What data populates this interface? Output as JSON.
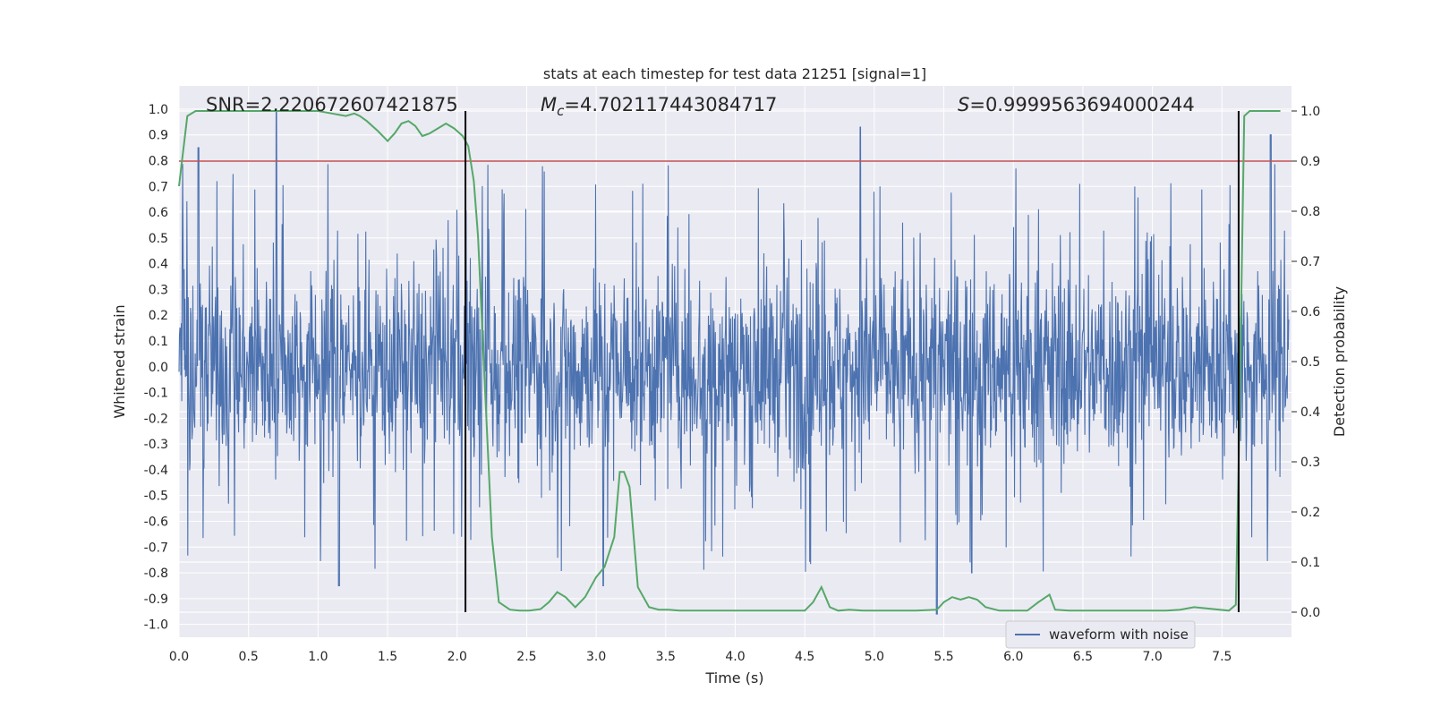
{
  "chart_data": {
    "type": "line",
    "title": "stats at each timestep for test data 21251 [signal=1]",
    "xlabel": "Time (s)",
    "ylabel": "Whitened strain",
    "ylabel_right": "Detection probability",
    "xlim": [
      0.0,
      8.0
    ],
    "ylim": [
      -1.05,
      1.09
    ],
    "ylim_right": [
      -0.05,
      1.0
    ],
    "x_ticks": [
      "0.0",
      "0.5",
      "1.0",
      "1.5",
      "2.0",
      "2.5",
      "3.0",
      "3.5",
      "4.0",
      "4.5",
      "5.0",
      "5.5",
      "6.0",
      "6.5",
      "7.0",
      "7.5"
    ],
    "x_tick_values": [
      0.0,
      0.5,
      1.0,
      1.5,
      2.0,
      2.5,
      3.0,
      3.5,
      4.0,
      4.5,
      5.0,
      5.5,
      6.0,
      6.5,
      7.0,
      7.5
    ],
    "y_ticks": [
      "1.0",
      "0.9",
      "0.8",
      "0.7",
      "0.6",
      "0.5",
      "0.4",
      "0.3",
      "0.2",
      "0.1",
      "0.0",
      "-0.1",
      "-0.2",
      "-0.3",
      "-0.4",
      "-0.5",
      "-0.6",
      "-0.7",
      "-0.8",
      "-0.9",
      "-1.0"
    ],
    "y_tick_values": [
      1.0,
      0.9,
      0.8,
      0.7,
      0.6,
      0.5,
      0.4,
      0.3,
      0.2,
      0.1,
      0.0,
      -0.1,
      -0.2,
      -0.3,
      -0.4,
      -0.5,
      -0.6,
      -0.7,
      -0.8,
      -0.9,
      -1.0
    ],
    "y_right_ticks": [
      "1.0",
      "0.9",
      "0.8",
      "0.7",
      "0.6",
      "0.5",
      "0.4",
      "0.3",
      "0.2",
      "0.1",
      "0.0"
    ],
    "y_right_tick_values": [
      1.0,
      0.9,
      0.8,
      0.7,
      0.6,
      0.5,
      0.4,
      0.3,
      0.2,
      0.1,
      0.0
    ],
    "annotations": {
      "snr": "SNR=2.220672607421875",
      "mc_symbol": "M",
      "mc_sub": "c",
      "mc_value": "=4.702117443084717",
      "s_symbol": "S",
      "s_value": "=0.9999563694000244"
    },
    "legend": {
      "label": "waveform with noise",
      "position": "lower-right"
    },
    "threshold_right": 0.9,
    "event_lines_x": [
      2.06,
      7.62
    ],
    "waveform": {
      "name": "waveform with noise",
      "color": "#4c72b0",
      "note_visible_envelope": "dense noise mostly within ±0.45, peaks to about ±1.0",
      "x_range": [
        0.0,
        8.0
      ]
    },
    "series": [
      {
        "name": "",
        "color": "#55a868",
        "axis": "right",
        "x": [
          0.0,
          0.06,
          0.12,
          0.2,
          0.3,
          0.4,
          0.5,
          0.6,
          0.7,
          0.8,
          0.9,
          1.0,
          1.1,
          1.2,
          1.26,
          1.3,
          1.35,
          1.43,
          1.5,
          1.55,
          1.6,
          1.65,
          1.7,
          1.75,
          1.8,
          1.86,
          1.92,
          1.98,
          2.04,
          2.08,
          2.12,
          2.15,
          2.2,
          2.25,
          2.3,
          2.38,
          2.45,
          2.52,
          2.6,
          2.66,
          2.72,
          2.78,
          2.85,
          2.92,
          3.0,
          3.06,
          3.13,
          3.17,
          3.2,
          3.24,
          3.3,
          3.38,
          3.45,
          3.52,
          3.6,
          3.7,
          3.8,
          4.0,
          4.2,
          4.4,
          4.5,
          4.56,
          4.62,
          4.68,
          4.74,
          4.82,
          4.92,
          5.0,
          5.1,
          5.2,
          5.3,
          5.45,
          5.5,
          5.56,
          5.62,
          5.68,
          5.74,
          5.8,
          5.9,
          6.0,
          6.1,
          6.18,
          6.26,
          6.3,
          6.4,
          6.6,
          6.8,
          7.0,
          7.1,
          7.2,
          7.3,
          7.55,
          7.6,
          7.62,
          7.66,
          7.7,
          7.76,
          7.8,
          7.92
        ],
        "values": [
          0.85,
          0.99,
          1.0,
          1.0,
          1.0,
          1.0,
          1.0,
          1.0,
          1.0,
          1.0,
          1.0,
          1.0,
          0.995,
          0.99,
          0.995,
          0.99,
          0.98,
          0.96,
          0.94,
          0.955,
          0.975,
          0.98,
          0.97,
          0.95,
          0.955,
          0.965,
          0.975,
          0.965,
          0.95,
          0.93,
          0.86,
          0.75,
          0.45,
          0.15,
          0.02,
          0.005,
          0.003,
          0.003,
          0.006,
          0.02,
          0.04,
          0.03,
          0.01,
          0.03,
          0.07,
          0.09,
          0.15,
          0.28,
          0.28,
          0.25,
          0.05,
          0.01,
          0.005,
          0.005,
          0.003,
          0.003,
          0.003,
          0.003,
          0.003,
          0.003,
          0.003,
          0.02,
          0.05,
          0.01,
          0.003,
          0.005,
          0.003,
          0.003,
          0.003,
          0.003,
          0.003,
          0.005,
          0.02,
          0.03,
          0.025,
          0.03,
          0.025,
          0.01,
          0.003,
          0.003,
          0.003,
          0.02,
          0.035,
          0.005,
          0.003,
          0.003,
          0.003,
          0.003,
          0.003,
          0.005,
          0.01,
          0.003,
          0.015,
          0.3,
          0.99,
          1.0,
          1.0,
          1.0,
          1.0
        ]
      }
    ],
    "colors": {
      "background": "#eaeaf2",
      "grid": "#ffffff",
      "waveform": "#4c72b0",
      "probability": "#55a868",
      "threshold": "#c44e52",
      "event_lines": "#000000"
    }
  }
}
